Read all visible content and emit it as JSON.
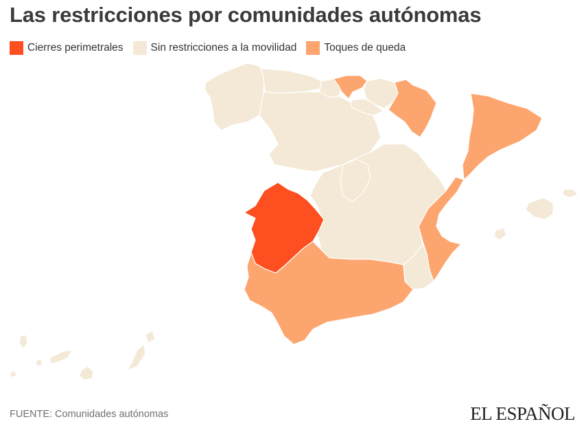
{
  "title": "Las restricciones por comunidades autónomas",
  "legend": [
    {
      "label": "Cierres perimetrales",
      "color": "#fd4f1f"
    },
    {
      "label": "Sin restricciones a la movilidad",
      "color": "#f3e9d6"
    },
    {
      "label": "Toques de queda",
      "color": "#fda56f"
    }
  ],
  "colors": {
    "cierre": "#fd4f1f",
    "sin_restricciones": "#f3e9d6",
    "toque": "#fda56f"
  },
  "source": "FUENTE: Comunidades autónomas",
  "logo": "EL ESPAÑOL"
}
